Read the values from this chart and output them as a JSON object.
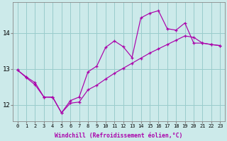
{
  "xlabel": "Windchill (Refroidissement éolien,°C)",
  "bg_color": "#cceaea",
  "line_color": "#aa00aa",
  "grid_color": "#99cccc",
  "curve_x": [
    0,
    1,
    2,
    3,
    4,
    5,
    6,
    7,
    8,
    9,
    10,
    11,
    12,
    13,
    14,
    15,
    16,
    17,
    18,
    19,
    20,
    21,
    22,
    23
  ],
  "curve_y": [
    12.97,
    12.78,
    12.62,
    12.22,
    12.22,
    11.78,
    12.12,
    12.22,
    12.92,
    13.08,
    13.6,
    13.78,
    13.62,
    13.32,
    14.42,
    14.55,
    14.62,
    14.12,
    14.08,
    14.28,
    13.72,
    13.72,
    13.68,
    13.65
  ],
  "linear_x": [
    0,
    1,
    2,
    3,
    4,
    5,
    6,
    7,
    8,
    9,
    10,
    11,
    12,
    13,
    14,
    15,
    16,
    17,
    18,
    19,
    20,
    21,
    22,
    23
  ],
  "linear_y": [
    12.97,
    12.76,
    12.56,
    12.22,
    12.21,
    11.78,
    12.05,
    12.08,
    12.42,
    12.55,
    12.72,
    12.88,
    13.02,
    13.16,
    13.3,
    13.44,
    13.56,
    13.68,
    13.8,
    13.92,
    13.88,
    13.72,
    13.68,
    13.65
  ],
  "ylim": [
    11.55,
    14.85
  ],
  "yticks": [
    12,
    13,
    14
  ],
  "xticks": [
    0,
    1,
    2,
    3,
    4,
    5,
    6,
    7,
    8,
    9,
    10,
    11,
    12,
    13,
    14,
    15,
    16,
    17,
    18,
    19,
    20,
    21,
    22,
    23
  ]
}
